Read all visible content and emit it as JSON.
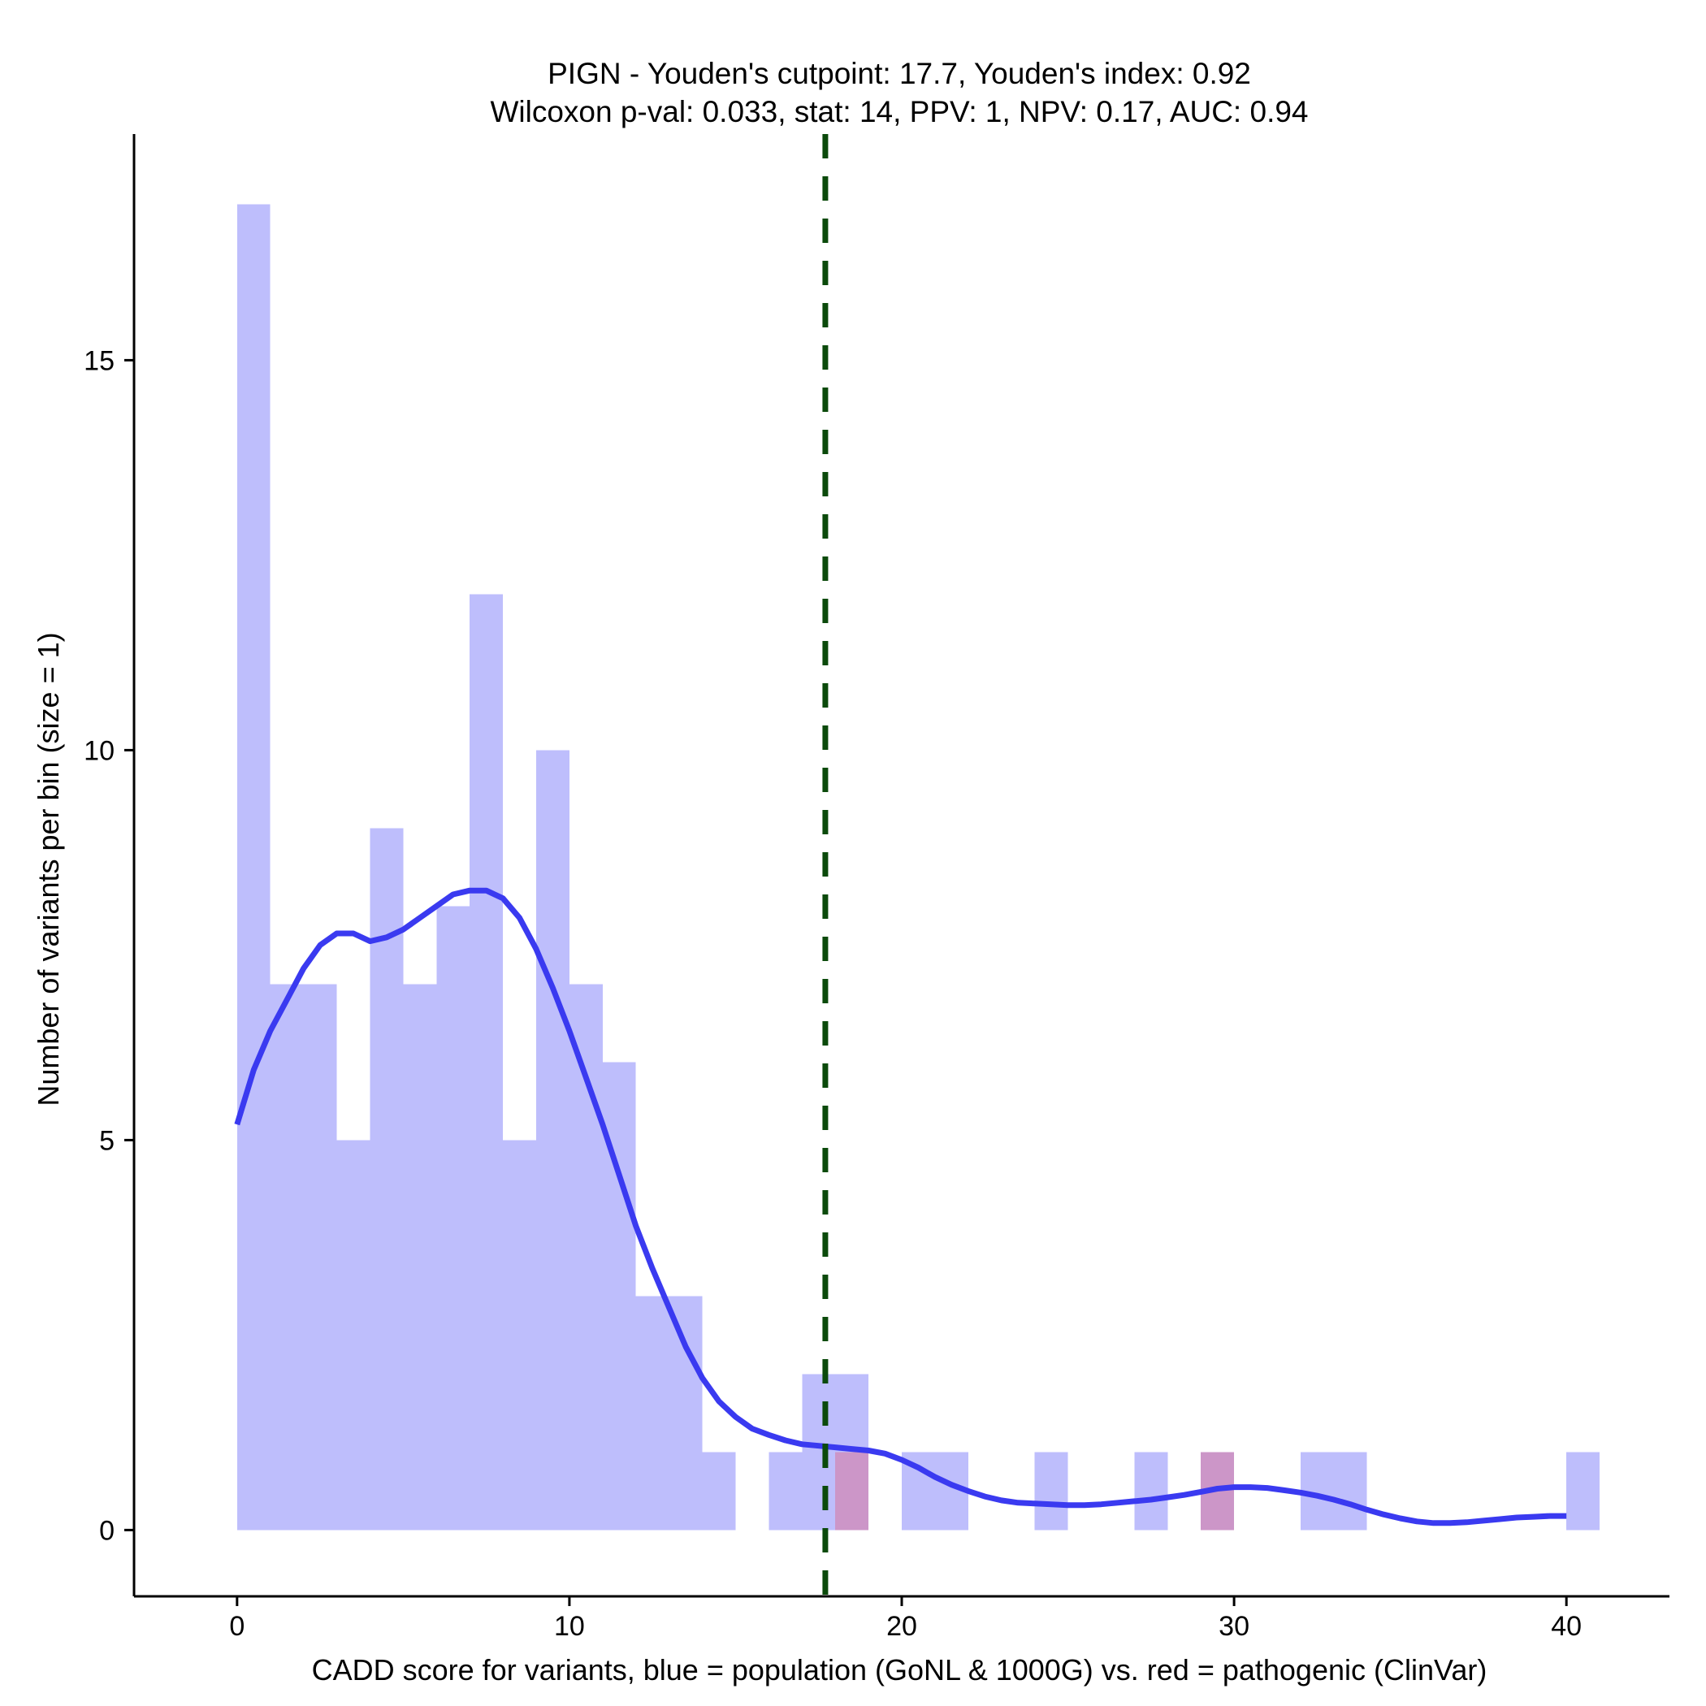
{
  "chart_data": {
    "type": "bar",
    "title_line1": "PIGN - Youden's cutpoint: 17.7, Youden's index: 0.92",
    "title_line2": "Wilcoxon p-val: 0.033, stat: 14, PPV: 1, NPV: 0.17, AUC: 0.94",
    "xlabel": "CADD score for variants, blue = population (GoNL & 1000G) vs. red = pathogenic (ClinVar)",
    "ylabel": "Number of variants per bin (size = 1)",
    "xlim": [
      -3.1,
      43.1
    ],
    "ylim": [
      -0.85,
      17.9
    ],
    "xticks": [
      0,
      10,
      20,
      30,
      40
    ],
    "xtick_labels": [
      "0",
      "10",
      "20",
      "30",
      "40"
    ],
    "yticks": [
      0,
      5,
      10,
      15
    ],
    "ytick_labels": [
      "0",
      "5",
      "10",
      "15"
    ],
    "bin_size": 1,
    "cutpoint": 17.7,
    "series": [
      {
        "name": "population (GoNL & 1000G)",
        "color": "#bebefc",
        "bins": [
          {
            "start": 0,
            "count": 17
          },
          {
            "start": 1,
            "count": 7
          },
          {
            "start": 2,
            "count": 7
          },
          {
            "start": 3,
            "count": 5
          },
          {
            "start": 4,
            "count": 9
          },
          {
            "start": 5,
            "count": 7
          },
          {
            "start": 6,
            "count": 8
          },
          {
            "start": 7,
            "count": 12
          },
          {
            "start": 8,
            "count": 5
          },
          {
            "start": 9,
            "count": 10
          },
          {
            "start": 10,
            "count": 7
          },
          {
            "start": 11,
            "count": 6
          },
          {
            "start": 12,
            "count": 3
          },
          {
            "start": 13,
            "count": 3
          },
          {
            "start": 14,
            "count": 1
          },
          {
            "start": 16,
            "count": 1
          },
          {
            "start": 17,
            "count": 2
          },
          {
            "start": 18,
            "count": 2
          },
          {
            "start": 20,
            "count": 1
          },
          {
            "start": 21,
            "count": 1
          },
          {
            "start": 24,
            "count": 1
          },
          {
            "start": 27,
            "count": 1
          },
          {
            "start": 29,
            "count": 1
          },
          {
            "start": 32,
            "count": 1
          },
          {
            "start": 33,
            "count": 1
          },
          {
            "start": 40,
            "count": 1
          }
        ]
      },
      {
        "name": "pathogenic (ClinVar)",
        "color": "#cc96c8",
        "bins": [
          {
            "start": 18,
            "count": 1
          },
          {
            "start": 29,
            "count": 1
          }
        ]
      }
    ],
    "density": {
      "name": "population density",
      "color": "#3a3af0",
      "x": [
        0,
        0.5,
        1,
        1.5,
        2,
        2.5,
        3,
        3.5,
        4,
        4.5,
        5,
        5.5,
        6,
        6.5,
        7,
        7.5,
        8,
        8.5,
        9,
        9.5,
        10,
        10.5,
        11,
        11.5,
        12,
        12.5,
        13,
        13.5,
        14,
        14.5,
        15,
        15.5,
        16,
        16.5,
        17,
        17.5,
        18,
        18.5,
        19,
        19.5,
        20,
        20.5,
        21,
        21.5,
        22,
        22.5,
        23,
        23.5,
        24,
        24.5,
        25,
        25.5,
        26,
        26.5,
        27,
        27.5,
        28,
        28.5,
        29,
        29.5,
        30,
        30.5,
        31,
        31.5,
        32,
        32.5,
        33,
        33.5,
        34,
        34.5,
        35,
        35.5,
        36,
        36.5,
        37,
        37.5,
        38,
        38.5,
        39,
        39.5,
        40
      ],
      "y": [
        5.2,
        5.9,
        6.4,
        6.8,
        7.2,
        7.5,
        7.65,
        7.65,
        7.55,
        7.6,
        7.7,
        7.85,
        8.0,
        8.15,
        8.2,
        8.2,
        8.1,
        7.85,
        7.45,
        6.95,
        6.4,
        5.8,
        5.2,
        4.55,
        3.9,
        3.35,
        2.85,
        2.35,
        1.95,
        1.65,
        1.45,
        1.3,
        1.22,
        1.15,
        1.1,
        1.08,
        1.06,
        1.04,
        1.02,
        0.98,
        0.9,
        0.8,
        0.68,
        0.58,
        0.5,
        0.43,
        0.38,
        0.35,
        0.34,
        0.33,
        0.32,
        0.32,
        0.33,
        0.35,
        0.37,
        0.39,
        0.42,
        0.45,
        0.49,
        0.53,
        0.55,
        0.55,
        0.54,
        0.51,
        0.48,
        0.44,
        0.39,
        0.33,
        0.26,
        0.2,
        0.15,
        0.11,
        0.09,
        0.09,
        0.1,
        0.12,
        0.14,
        0.16,
        0.17,
        0.18,
        0.18
      ]
    }
  }
}
